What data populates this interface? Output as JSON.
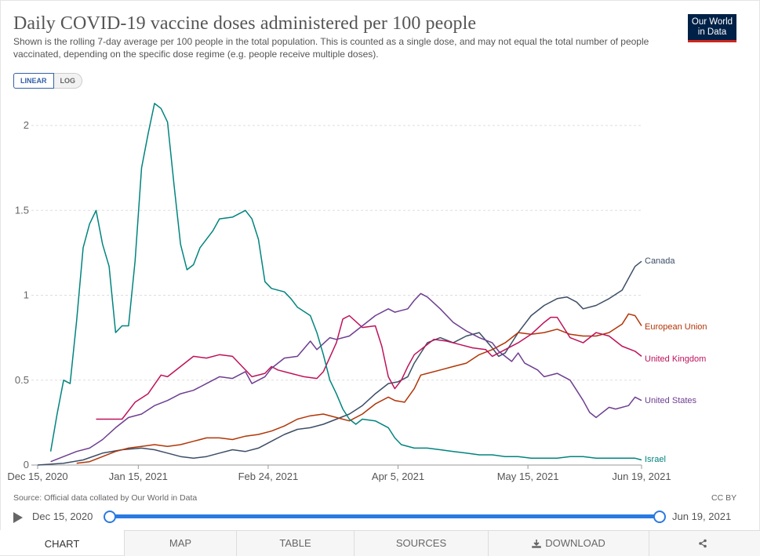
{
  "header": {
    "title": "Daily COVID-19 vaccine doses administered per 100 people",
    "subtitle": "Shown is the rolling 7-day average per 100 people in the total population. This is counted as a single dose, and may not equal the total number of people vaccinated, depending on the specific dose regime (e.g. people receive multiple doses).",
    "logo_line1": "Our World",
    "logo_line2": "in Data",
    "logo_colors": {
      "bg": "#002147",
      "bar": "#ce261e"
    }
  },
  "scale_toggle": {
    "linear_label": "LINEAR",
    "log_label": "LOG",
    "selected": "LINEAR"
  },
  "chart_data": {
    "type": "line",
    "title": "Daily COVID-19 vaccine doses administered per 100 people",
    "xlabel": "",
    "ylabel": "",
    "x_range_days": [
      0,
      186
    ],
    "ylim": [
      0,
      2.2
    ],
    "y_ticks": [
      0,
      0.5,
      1,
      1.5,
      2
    ],
    "y_tick_labels": [
      "0",
      "0.5",
      "1",
      "1.5",
      "2"
    ],
    "x_ticks": [
      0,
      31,
      71,
      111,
      151,
      186
    ],
    "x_tick_labels": [
      "Dec 15, 2020",
      "Jan 15, 2021",
      "Feb 24, 2021",
      "Apr 5, 2021",
      "May 15, 2021",
      "Jun 19, 2021"
    ],
    "grid": "horizontal dashed",
    "legend": "inline labels at line ends",
    "series": [
      {
        "name": "Canada",
        "color": "#3c4e66",
        "points": [
          [
            0,
            0
          ],
          [
            8,
            0.01
          ],
          [
            14,
            0.03
          ],
          [
            20,
            0.07
          ],
          [
            26,
            0.09
          ],
          [
            32,
            0.1
          ],
          [
            36,
            0.09
          ],
          [
            40,
            0.07
          ],
          [
            44,
            0.05
          ],
          [
            48,
            0.04
          ],
          [
            52,
            0.05
          ],
          [
            56,
            0.07
          ],
          [
            60,
            0.09
          ],
          [
            64,
            0.08
          ],
          [
            68,
            0.1
          ],
          [
            72,
            0.14
          ],
          [
            76,
            0.18
          ],
          [
            80,
            0.21
          ],
          [
            84,
            0.22
          ],
          [
            88,
            0.24
          ],
          [
            92,
            0.27
          ],
          [
            96,
            0.3
          ],
          [
            100,
            0.35
          ],
          [
            104,
            0.42
          ],
          [
            108,
            0.48
          ],
          [
            111,
            0.49
          ],
          [
            114,
            0.52
          ],
          [
            116,
            0.6
          ],
          [
            120,
            0.72
          ],
          [
            124,
            0.75
          ],
          [
            128,
            0.72
          ],
          [
            132,
            0.76
          ],
          [
            136,
            0.78
          ],
          [
            140,
            0.69
          ],
          [
            142,
            0.64
          ],
          [
            144,
            0.66
          ],
          [
            148,
            0.78
          ],
          [
            152,
            0.88
          ],
          [
            156,
            0.94
          ],
          [
            160,
            0.98
          ],
          [
            163,
            0.99
          ],
          [
            166,
            0.96
          ],
          [
            168,
            0.92
          ],
          [
            172,
            0.94
          ],
          [
            176,
            0.98
          ],
          [
            180,
            1.03
          ],
          [
            182,
            1.1
          ],
          [
            184,
            1.17
          ],
          [
            186,
            1.2
          ]
        ]
      },
      {
        "name": "European Union",
        "color": "#b13507",
        "points": [
          [
            12,
            0.01
          ],
          [
            16,
            0.02
          ],
          [
            20,
            0.05
          ],
          [
            24,
            0.08
          ],
          [
            28,
            0.1
          ],
          [
            32,
            0.11
          ],
          [
            36,
            0.12
          ],
          [
            40,
            0.11
          ],
          [
            44,
            0.12
          ],
          [
            48,
            0.14
          ],
          [
            52,
            0.16
          ],
          [
            56,
            0.16
          ],
          [
            60,
            0.15
          ],
          [
            64,
            0.17
          ],
          [
            68,
            0.18
          ],
          [
            72,
            0.2
          ],
          [
            76,
            0.23
          ],
          [
            80,
            0.27
          ],
          [
            84,
            0.29
          ],
          [
            88,
            0.3
          ],
          [
            92,
            0.28
          ],
          [
            96,
            0.26
          ],
          [
            100,
            0.3
          ],
          [
            104,
            0.36
          ],
          [
            108,
            0.4
          ],
          [
            110,
            0.38
          ],
          [
            113,
            0.37
          ],
          [
            116,
            0.45
          ],
          [
            118,
            0.53
          ],
          [
            120,
            0.54
          ],
          [
            124,
            0.56
          ],
          [
            128,
            0.58
          ],
          [
            132,
            0.6
          ],
          [
            136,
            0.65
          ],
          [
            140,
            0.68
          ],
          [
            144,
            0.72
          ],
          [
            148,
            0.78
          ],
          [
            152,
            0.77
          ],
          [
            156,
            0.78
          ],
          [
            160,
            0.8
          ],
          [
            164,
            0.77
          ],
          [
            168,
            0.76
          ],
          [
            172,
            0.76
          ],
          [
            176,
            0.78
          ],
          [
            180,
            0.83
          ],
          [
            182,
            0.89
          ],
          [
            184,
            0.88
          ],
          [
            186,
            0.82
          ]
        ]
      },
      {
        "name": "United Kingdom",
        "color": "#be125a",
        "points": [
          [
            18,
            0.27
          ],
          [
            22,
            0.27
          ],
          [
            26,
            0.27
          ],
          [
            30,
            0.37
          ],
          [
            34,
            0.42
          ],
          [
            38,
            0.53
          ],
          [
            40,
            0.52
          ],
          [
            44,
            0.58
          ],
          [
            48,
            0.64
          ],
          [
            52,
            0.63
          ],
          [
            56,
            0.65
          ],
          [
            60,
            0.64
          ],
          [
            62,
            0.6
          ],
          [
            66,
            0.52
          ],
          [
            70,
            0.54
          ],
          [
            72,
            0.58
          ],
          [
            74,
            0.56
          ],
          [
            78,
            0.54
          ],
          [
            82,
            0.52
          ],
          [
            86,
            0.51
          ],
          [
            88,
            0.55
          ],
          [
            92,
            0.72
          ],
          [
            94,
            0.86
          ],
          [
            96,
            0.88
          ],
          [
            100,
            0.81
          ],
          [
            104,
            0.82
          ],
          [
            106,
            0.7
          ],
          [
            108,
            0.52
          ],
          [
            110,
            0.45
          ],
          [
            112,
            0.5
          ],
          [
            114,
            0.58
          ],
          [
            116,
            0.65
          ],
          [
            118,
            0.68
          ],
          [
            122,
            0.74
          ],
          [
            126,
            0.73
          ],
          [
            130,
            0.71
          ],
          [
            134,
            0.69
          ],
          [
            138,
            0.68
          ],
          [
            140,
            0.64
          ],
          [
            144,
            0.68
          ],
          [
            148,
            0.72
          ],
          [
            152,
            0.77
          ],
          [
            156,
            0.84
          ],
          [
            158,
            0.87
          ],
          [
            160,
            0.87
          ],
          [
            164,
            0.75
          ],
          [
            168,
            0.72
          ],
          [
            172,
            0.78
          ],
          [
            176,
            0.76
          ],
          [
            180,
            0.7
          ],
          [
            184,
            0.67
          ],
          [
            186,
            0.64
          ]
        ]
      },
      {
        "name": "United States",
        "color": "#6d3e91",
        "points": [
          [
            4,
            0.02
          ],
          [
            8,
            0.05
          ],
          [
            12,
            0.08
          ],
          [
            16,
            0.1
          ],
          [
            20,
            0.15
          ],
          [
            24,
            0.22
          ],
          [
            28,
            0.28
          ],
          [
            32,
            0.3
          ],
          [
            36,
            0.35
          ],
          [
            40,
            0.38
          ],
          [
            44,
            0.42
          ],
          [
            48,
            0.44
          ],
          [
            52,
            0.48
          ],
          [
            56,
            0.52
          ],
          [
            60,
            0.51
          ],
          [
            64,
            0.55
          ],
          [
            66,
            0.48
          ],
          [
            70,
            0.52
          ],
          [
            72,
            0.57
          ],
          [
            76,
            0.63
          ],
          [
            80,
            0.64
          ],
          [
            84,
            0.73
          ],
          [
            86,
            0.68
          ],
          [
            90,
            0.75
          ],
          [
            92,
            0.74
          ],
          [
            96,
            0.76
          ],
          [
            100,
            0.82
          ],
          [
            104,
            0.88
          ],
          [
            108,
            0.92
          ],
          [
            110,
            0.9
          ],
          [
            114,
            0.92
          ],
          [
            116,
            0.97
          ],
          [
            118,
            1.01
          ],
          [
            120,
            0.99
          ],
          [
            124,
            0.92
          ],
          [
            128,
            0.84
          ],
          [
            132,
            0.79
          ],
          [
            136,
            0.75
          ],
          [
            140,
            0.72
          ],
          [
            142,
            0.67
          ],
          [
            146,
            0.61
          ],
          [
            148,
            0.66
          ],
          [
            150,
            0.6
          ],
          [
            154,
            0.56
          ],
          [
            156,
            0.52
          ],
          [
            160,
            0.54
          ],
          [
            164,
            0.5
          ],
          [
            166,
            0.44
          ],
          [
            168,
            0.38
          ],
          [
            170,
            0.31
          ],
          [
            172,
            0.28
          ],
          [
            176,
            0.34
          ],
          [
            178,
            0.33
          ],
          [
            182,
            0.35
          ],
          [
            184,
            0.4
          ],
          [
            186,
            0.38
          ]
        ]
      },
      {
        "name": "Israel",
        "color": "#00847e",
        "points": [
          [
            4,
            0.08
          ],
          [
            6,
            0.3
          ],
          [
            8,
            0.5
          ],
          [
            10,
            0.48
          ],
          [
            12,
            0.85
          ],
          [
            14,
            1.28
          ],
          [
            16,
            1.42
          ],
          [
            18,
            1.5
          ],
          [
            20,
            1.3
          ],
          [
            22,
            1.17
          ],
          [
            24,
            0.78
          ],
          [
            26,
            0.82
          ],
          [
            28,
            0.82
          ],
          [
            30,
            1.2
          ],
          [
            32,
            1.75
          ],
          [
            34,
            1.95
          ],
          [
            36,
            2.13
          ],
          [
            38,
            2.1
          ],
          [
            40,
            2.02
          ],
          [
            42,
            1.65
          ],
          [
            44,
            1.3
          ],
          [
            46,
            1.15
          ],
          [
            48,
            1.18
          ],
          [
            50,
            1.28
          ],
          [
            54,
            1.38
          ],
          [
            56,
            1.45
          ],
          [
            60,
            1.46
          ],
          [
            64,
            1.5
          ],
          [
            66,
            1.45
          ],
          [
            68,
            1.33
          ],
          [
            70,
            1.08
          ],
          [
            72,
            1.04
          ],
          [
            76,
            1.02
          ],
          [
            78,
            0.98
          ],
          [
            80,
            0.93
          ],
          [
            84,
            0.88
          ],
          [
            86,
            0.78
          ],
          [
            88,
            0.65
          ],
          [
            90,
            0.5
          ],
          [
            92,
            0.42
          ],
          [
            94,
            0.33
          ],
          [
            96,
            0.27
          ],
          [
            98,
            0.24
          ],
          [
            100,
            0.27
          ],
          [
            104,
            0.26
          ],
          [
            108,
            0.22
          ],
          [
            110,
            0.16
          ],
          [
            112,
            0.12
          ],
          [
            116,
            0.1
          ],
          [
            120,
            0.1
          ],
          [
            124,
            0.09
          ],
          [
            128,
            0.08
          ],
          [
            132,
            0.07
          ],
          [
            136,
            0.06
          ],
          [
            140,
            0.06
          ],
          [
            144,
            0.05
          ],
          [
            148,
            0.05
          ],
          [
            152,
            0.04
          ],
          [
            156,
            0.04
          ],
          [
            160,
            0.04
          ],
          [
            164,
            0.05
          ],
          [
            168,
            0.05
          ],
          [
            172,
            0.04
          ],
          [
            176,
            0.04
          ],
          [
            180,
            0.04
          ],
          [
            184,
            0.04
          ],
          [
            186,
            0.03
          ]
        ]
      }
    ]
  },
  "footer": {
    "source": "Source: Official data collated by Our World in Data",
    "license": "CC BY",
    "timeline_start": "Dec 15, 2020",
    "timeline_end": "Jun 19, 2021"
  },
  "tabs": [
    {
      "label": "CHART",
      "icon": ""
    },
    {
      "label": "MAP",
      "icon": ""
    },
    {
      "label": "TABLE",
      "icon": ""
    },
    {
      "label": "SOURCES",
      "icon": ""
    },
    {
      "label": "DOWNLOAD",
      "icon": "download-icon"
    },
    {
      "label": "",
      "icon": "share-icon"
    }
  ],
  "colors": {
    "accent": "#2a7ae2",
    "toggle_active": "#3360a9"
  }
}
